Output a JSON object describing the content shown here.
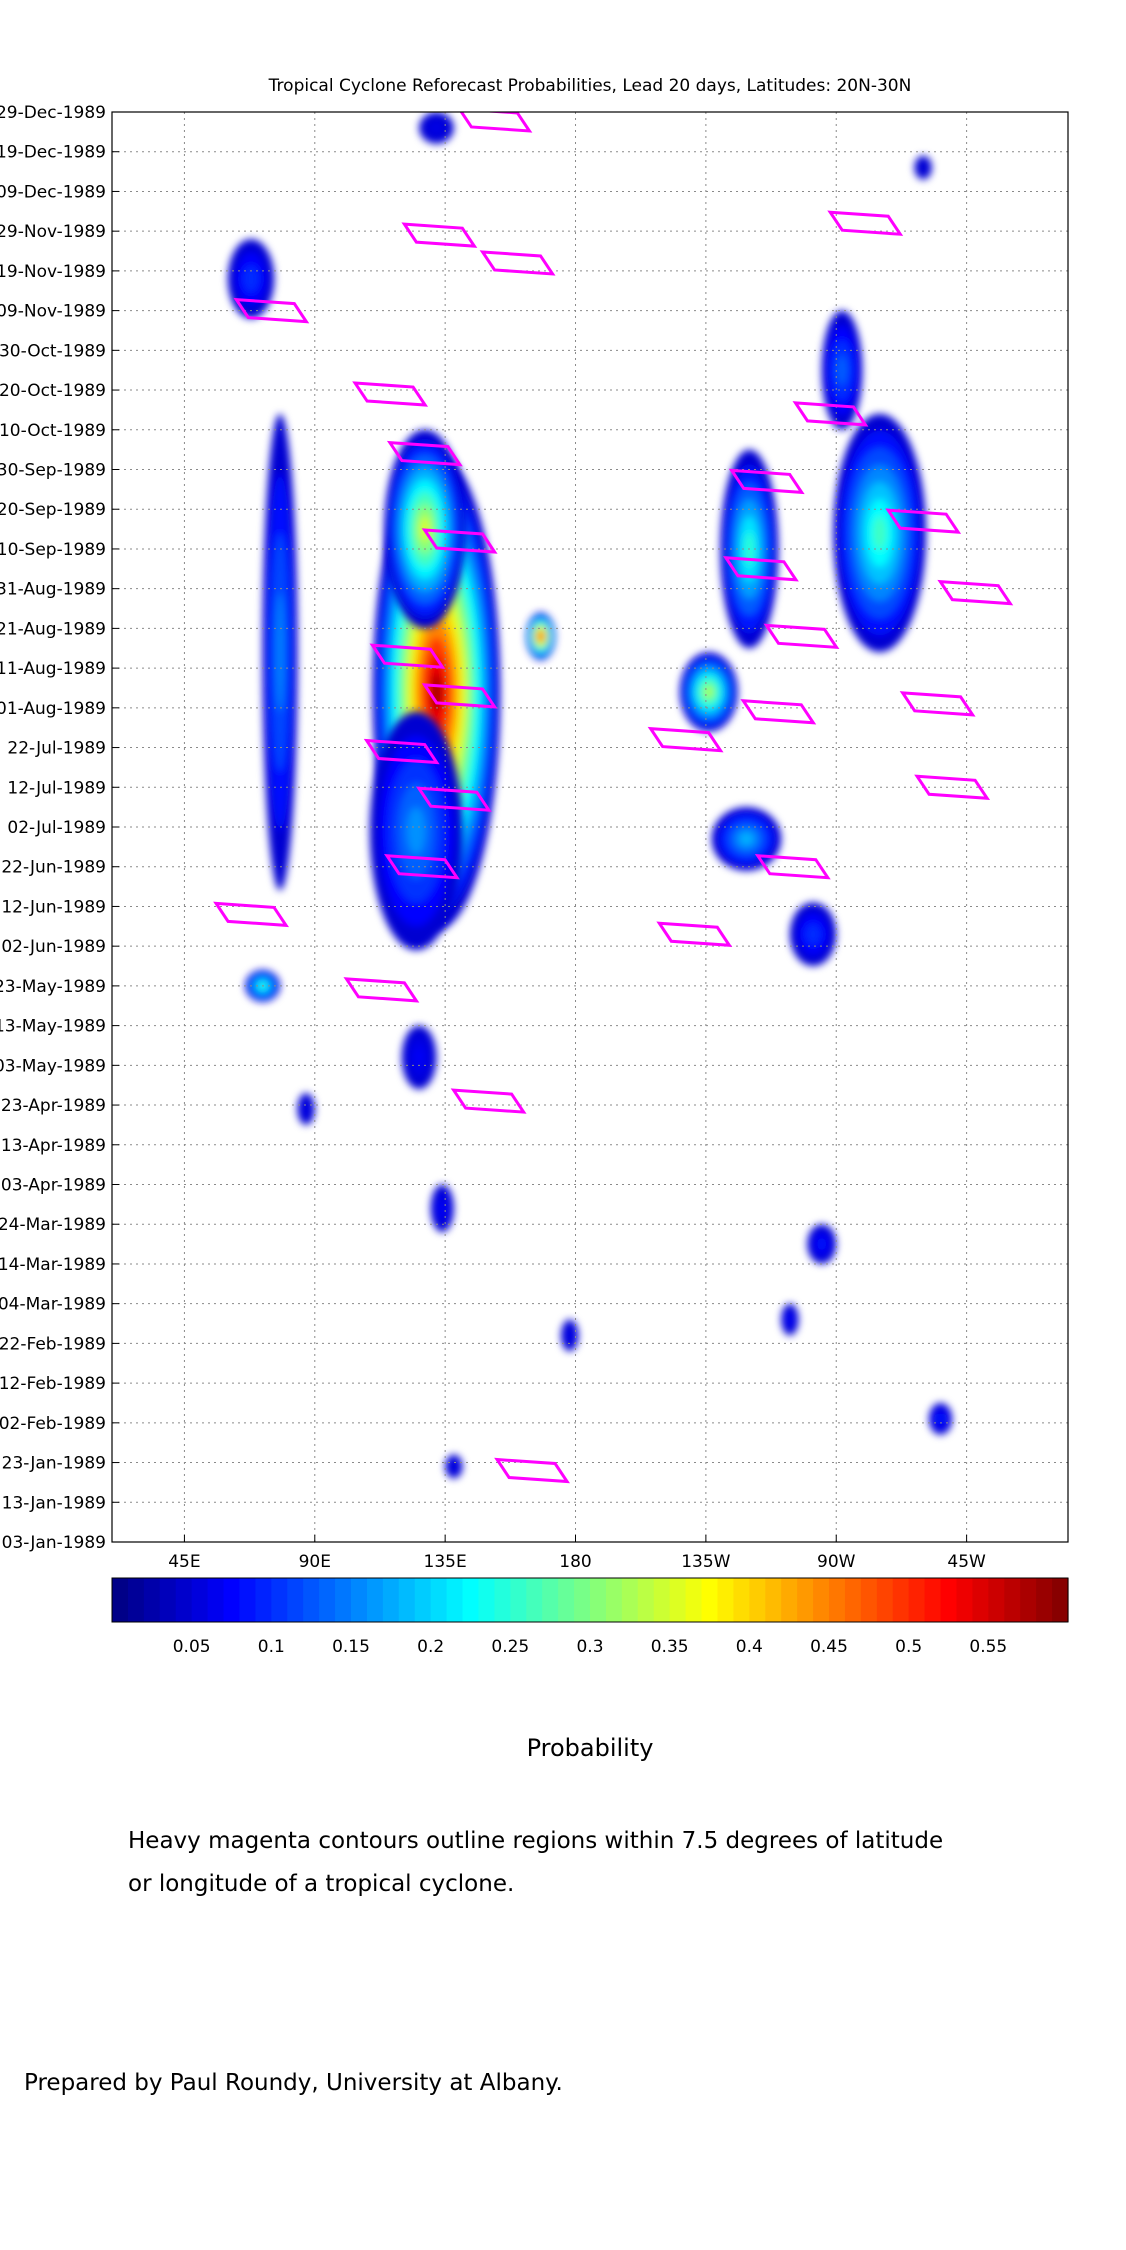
{
  "chart_data": {
    "type": "heatmap",
    "title": "Tropical Cyclone Reforecast Probabilities, Lead 20 days, Latitudes: 20N-30N",
    "x_ticks": [
      "45E",
      "90E",
      "135E",
      "180",
      "135W",
      "90W",
      "45W"
    ],
    "x_tick_values": [
      45,
      90,
      135,
      180,
      225,
      270,
      315
    ],
    "xlim": [
      20,
      350
    ],
    "y_ticks": [
      "29-Dec-1989",
      "19-Dec-1989",
      "09-Dec-1989",
      "29-Nov-1989",
      "19-Nov-1989",
      "09-Nov-1989",
      "30-Oct-1989",
      "20-Oct-1989",
      "10-Oct-1989",
      "30-Sep-1989",
      "20-Sep-1989",
      "10-Sep-1989",
      "31-Aug-1989",
      "21-Aug-1989",
      "11-Aug-1989",
      "01-Aug-1989",
      "22-Jul-1989",
      "12-Jul-1989",
      "02-Jul-1989",
      "22-Jun-1989",
      "12-Jun-1989",
      "02-Jun-1989",
      "23-May-1989",
      "13-May-1989",
      "03-May-1989",
      "23-Apr-1989",
      "13-Apr-1989",
      "03-Apr-1989",
      "24-Mar-1989",
      "14-Mar-1989",
      "04-Mar-1989",
      "22-Feb-1989",
      "12-Feb-1989",
      "02-Feb-1989",
      "23-Jan-1989",
      "13-Jan-1989",
      "03-Jan-1989"
    ],
    "ylim": [
      "03-Jan-1989",
      "29-Dec-1989"
    ],
    "colorbar": {
      "label": "Probability",
      "ticks": [
        "0.05",
        "0.1",
        "0.15",
        "0.2",
        "0.25",
        "0.3",
        "0.35",
        "0.4",
        "0.45",
        "0.5",
        "0.55"
      ],
      "range": [
        0.0,
        0.6
      ],
      "colormap": "jet"
    },
    "grid": true,
    "blobs": [
      {
        "lon": 132,
        "date": "05-Aug-1989",
        "peak": 0.58,
        "lon_spread": 22,
        "day_spread": 60
      },
      {
        "lon": 128,
        "date": "15-Sep-1989",
        "peak": 0.35,
        "lon_spread": 14,
        "day_spread": 25
      },
      {
        "lon": 168,
        "date": "19-Aug-1989",
        "peak": 0.52,
        "lon_spread": 5,
        "day_spread": 6
      },
      {
        "lon": 125,
        "date": "01-Jul-1989",
        "peak": 0.16,
        "lon_spread": 16,
        "day_spread": 30
      },
      {
        "lon": 78,
        "date": "15-Aug-1989",
        "peak": 0.15,
        "lon_spread": 6,
        "day_spread": 60
      },
      {
        "lon": 68,
        "date": "17-Nov-1989",
        "peak": 0.1,
        "lon_spread": 8,
        "day_spread": 10
      },
      {
        "lon": 72,
        "date": "23-May-1989",
        "peak": 0.26,
        "lon_spread": 6,
        "day_spread": 4
      },
      {
        "lon": 226,
        "date": "05-Aug-1989",
        "peak": 0.33,
        "lon_spread": 10,
        "day_spread": 10
      },
      {
        "lon": 240,
        "date": "10-Sep-1989",
        "peak": 0.25,
        "lon_spread": 10,
        "day_spread": 25
      },
      {
        "lon": 285,
        "date": "14-Sep-1989",
        "peak": 0.26,
        "lon_spread": 16,
        "day_spread": 30
      },
      {
        "lon": 272,
        "date": "25-Oct-1989",
        "peak": 0.13,
        "lon_spread": 7,
        "day_spread": 15
      },
      {
        "lon": 239,
        "date": "29-Jun-1989",
        "peak": 0.18,
        "lon_spread": 12,
        "day_spread": 8
      },
      {
        "lon": 262,
        "date": "05-Jun-1989",
        "peak": 0.1,
        "lon_spread": 8,
        "day_spread": 8
      },
      {
        "lon": 126,
        "date": "05-May-1989",
        "peak": 0.07,
        "lon_spread": 6,
        "day_spread": 8
      },
      {
        "lon": 134,
        "date": "28-Mar-1989",
        "peak": 0.07,
        "lon_spread": 4,
        "day_spread": 6
      },
      {
        "lon": 265,
        "date": "19-Mar-1989",
        "peak": 0.08,
        "lon_spread": 5,
        "day_spread": 5
      },
      {
        "lon": 254,
        "date": "28-Feb-1989",
        "peak": 0.07,
        "lon_spread": 3,
        "day_spread": 4
      },
      {
        "lon": 306,
        "date": "03-Feb-1989",
        "peak": 0.09,
        "lon_spread": 4,
        "day_spread": 4
      },
      {
        "lon": 178,
        "date": "24-Feb-1989",
        "peak": 0.06,
        "lon_spread": 3,
        "day_spread": 4
      },
      {
        "lon": 138,
        "date": "22-Jan-1989",
        "peak": 0.06,
        "lon_spread": 3,
        "day_spread": 3
      },
      {
        "lon": 87,
        "date": "22-Apr-1989",
        "peak": 0.06,
        "lon_spread": 3,
        "day_spread": 4
      },
      {
        "lon": 132,
        "date": "25-Dec-1989",
        "peak": 0.06,
        "lon_spread": 6,
        "day_spread": 4
      },
      {
        "lon": 300,
        "date": "15-Dec-1989",
        "peak": 0.05,
        "lon_spread": 3,
        "day_spread": 3
      }
    ],
    "tc_contours": [
      {
        "lon": 152,
        "date": "27-Dec-1989"
      },
      {
        "lon": 133,
        "date": "28-Nov-1989"
      },
      {
        "lon": 160,
        "date": "21-Nov-1989"
      },
      {
        "lon": 75,
        "date": "09-Nov-1989"
      },
      {
        "lon": 116,
        "date": "19-Oct-1989"
      },
      {
        "lon": 128,
        "date": "04-Oct-1989"
      },
      {
        "lon": 140,
        "date": "12-Sep-1989"
      },
      {
        "lon": 122,
        "date": "14-Aug-1989"
      },
      {
        "lon": 140,
        "date": "04-Aug-1989"
      },
      {
        "lon": 120,
        "date": "21-Jul-1989"
      },
      {
        "lon": 138,
        "date": "09-Jul-1989"
      },
      {
        "lon": 127,
        "date": "22-Jun-1989"
      },
      {
        "lon": 68,
        "date": "10-Jun-1989"
      },
      {
        "lon": 113,
        "date": "22-May-1989"
      },
      {
        "lon": 150,
        "date": "24-Apr-1989"
      },
      {
        "lon": 165,
        "date": "21-Jan-1989"
      },
      {
        "lon": 246,
        "date": "27-Sep-1989"
      },
      {
        "lon": 244,
        "date": "05-Sep-1989"
      },
      {
        "lon": 258,
        "date": "19-Aug-1989"
      },
      {
        "lon": 250,
        "date": "31-Jul-1989"
      },
      {
        "lon": 218,
        "date": "24-Jul-1989"
      },
      {
        "lon": 280,
        "date": "01-Dec-1989"
      },
      {
        "lon": 268,
        "date": "14-Oct-1989"
      },
      {
        "lon": 300,
        "date": "17-Sep-1989"
      },
      {
        "lon": 318,
        "date": "30-Aug-1989"
      },
      {
        "lon": 305,
        "date": "02-Aug-1989"
      },
      {
        "lon": 310,
        "date": "12-Jul-1989"
      },
      {
        "lon": 255,
        "date": "22-Jun-1989"
      },
      {
        "lon": 221,
        "date": "05-Jun-1989"
      }
    ],
    "tc_contour_color": "#ff00ff"
  },
  "labels": {
    "colorbar_label": "Probability",
    "note_line1": "Heavy magenta contours outline regions within 7.5 degrees of latitude",
    "note_line2": "or longitude of a tropical cyclone.",
    "credit": "Prepared by Paul Roundy, University at Albany."
  }
}
